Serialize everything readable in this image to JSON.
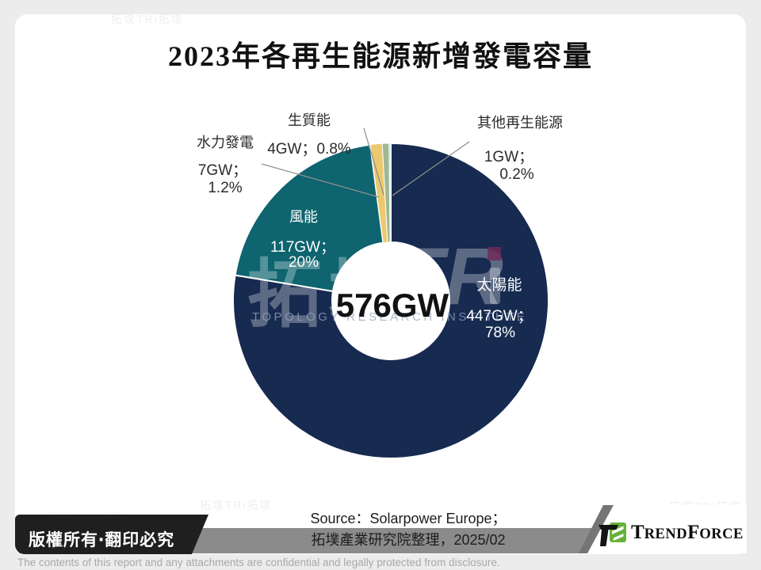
{
  "title": "2023年各再生能源新增發電容量",
  "chart_data": {
    "type": "pie",
    "donut": true,
    "title": "2023年各再生能源新增發電容量",
    "center_total_label": "576GW",
    "total_gw": 576,
    "unit": "GW",
    "start_angle": "12-oclock",
    "direction": "clockwise",
    "slices": [
      {
        "name": "太陽能",
        "value_gw": 447,
        "percent": 78,
        "color": "#172A50"
      },
      {
        "name": "風能",
        "value_gw": 117,
        "percent": 20,
        "color": "#0E646F"
      },
      {
        "name": "水力發電",
        "value_gw": 7,
        "percent": 1.2,
        "color": "#ECC96E"
      },
      {
        "name": "生質能",
        "value_gw": 4,
        "percent": 0.8,
        "color": "#9DB991"
      },
      {
        "name": "其他再生能源",
        "value_gw": 1,
        "percent": 0.2,
        "color": "#BDD7EE"
      }
    ]
  },
  "callouts": {
    "center": "576GW",
    "hydro": {
      "name": "水力發電",
      "value": "7GW；",
      "pct": "1.2%"
    },
    "biomass": {
      "name": "生質能",
      "value_pct": "4GW；0.8%"
    },
    "other": {
      "name": "其他再生能源",
      "value": "1GW；",
      "pct": "0.2%"
    },
    "wind": {
      "name": "風能",
      "value": "117GW；",
      "pct": "20%"
    },
    "solar": {
      "name": "太陽能",
      "value": "447GW；",
      "pct": "78%"
    }
  },
  "watermark": {
    "cjk": "拓墣",
    "latin": "TR",
    "caption": "TOPOLOGY RESEARCH INSTITUTE",
    "dot_color": "#6E2A57",
    "tile": "拓墣TRi拓墣"
  },
  "footer": {
    "copyright": "版權所有‧翻印必究",
    "source_line1": "Source：Solarpower Europe；",
    "source_line2": "拓墣產業研究院整理，2025/02",
    "brand_t1": "T",
    "brand_t2": "REND",
    "brand_t3": "F",
    "brand_t4": "ORCE",
    "disclaimer": "The contents of this report and any attachments are confidential and legally protected from disclosure."
  }
}
